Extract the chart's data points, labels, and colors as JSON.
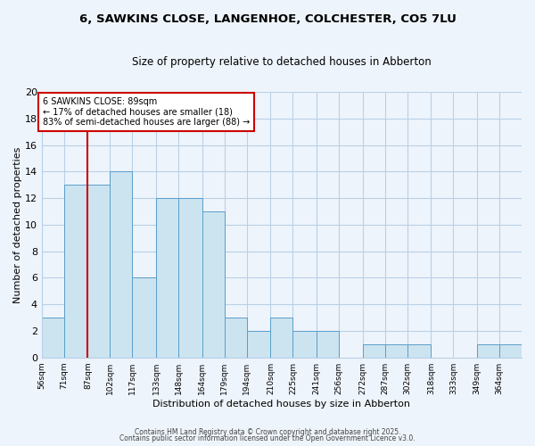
{
  "title": "6, SAWKINS CLOSE, LANGENHOE, COLCHESTER, CO5 7LU",
  "subtitle": "Size of property relative to detached houses in Abberton",
  "xlabel": "Distribution of detached houses by size in Abberton",
  "ylabel": "Number of detached properties",
  "bin_edges": [
    56,
    71,
    87,
    102,
    117,
    133,
    148,
    164,
    179,
    194,
    210,
    225,
    241,
    256,
    272,
    287,
    302,
    318,
    333,
    349,
    364,
    379
  ],
  "bin_labels": [
    "56sqm",
    "71sqm",
    "87sqm",
    "102sqm",
    "117sqm",
    "133sqm",
    "148sqm",
    "164sqm",
    "179sqm",
    "194sqm",
    "210sqm",
    "225sqm",
    "241sqm",
    "256sqm",
    "272sqm",
    "287sqm",
    "302sqm",
    "318sqm",
    "333sqm",
    "349sqm",
    "364sqm"
  ],
  "values": [
    3,
    13,
    13,
    14,
    6,
    12,
    12,
    11,
    3,
    2,
    3,
    2,
    2,
    0,
    1,
    1,
    1,
    0,
    0,
    1,
    1
  ],
  "bar_fill": "#cce4f0",
  "bar_edge": "#5a9ec9",
  "marker_bin_index": 2,
  "marker_line_color": "#cc0000",
  "annotation_text": "6 SAWKINS CLOSE: 89sqm\n← 17% of detached houses are smaller (18)\n83% of semi-detached houses are larger (88) →",
  "annotation_box_color": "#ffffff",
  "annotation_box_edge": "#cc0000",
  "ylim": [
    0,
    20
  ],
  "yticks": [
    0,
    2,
    4,
    6,
    8,
    10,
    12,
    14,
    16,
    18,
    20
  ],
  "background_color": "#eef4fb",
  "grid_color": "#b8d0e8",
  "footer1": "Contains HM Land Registry data © Crown copyright and database right 2025.",
  "footer2": "Contains public sector information licensed under the Open Government Licence v3.0."
}
